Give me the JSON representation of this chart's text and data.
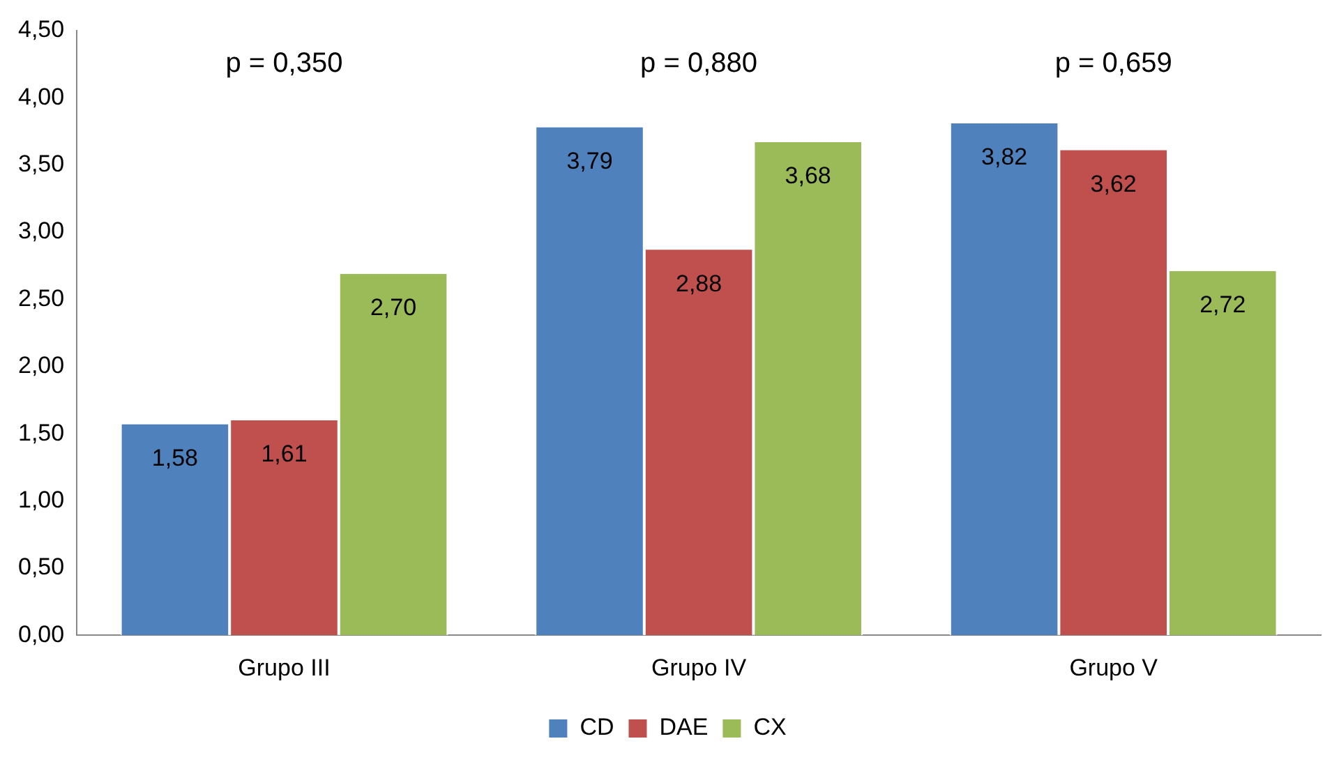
{
  "chart_data": {
    "type": "bar",
    "categories": [
      "Grupo III",
      "Grupo IV",
      "Grupo V"
    ],
    "series": [
      {
        "name": "CD",
        "color": "#4f81bd",
        "values": [
          1.58,
          3.79,
          3.82
        ],
        "value_labels": [
          "1,58",
          "3,79",
          "3,82"
        ]
      },
      {
        "name": "DAE",
        "color": "#c0504d",
        "values": [
          1.61,
          2.88,
          3.62
        ],
        "value_labels": [
          "1,61",
          "2,88",
          "3,62"
        ]
      },
      {
        "name": "CX",
        "color": "#9bbb59",
        "values": [
          2.7,
          3.68,
          2.72
        ],
        "value_labels": [
          "2,70",
          "3,68",
          "2,72"
        ]
      }
    ],
    "ylim": [
      0,
      4.5
    ],
    "yticks": [
      {
        "value": 0,
        "label": "0,00"
      },
      {
        "value": 0.5,
        "label": "0,50"
      },
      {
        "value": 1,
        "label": "1,00"
      },
      {
        "value": 1.5,
        "label": "1,50"
      },
      {
        "value": 2,
        "label": "2,00"
      },
      {
        "value": 2.5,
        "label": "2,50"
      },
      {
        "value": 3,
        "label": "3,00"
      },
      {
        "value": 3.5,
        "label": "3,50"
      },
      {
        "value": 4,
        "label": "4,00"
      },
      {
        "value": 4.5,
        "label": "4,50"
      }
    ],
    "annotations": [
      "p = 0,350",
      "p = 0,880",
      "p = 0,659"
    ],
    "grid": false,
    "legend": "bottom"
  }
}
